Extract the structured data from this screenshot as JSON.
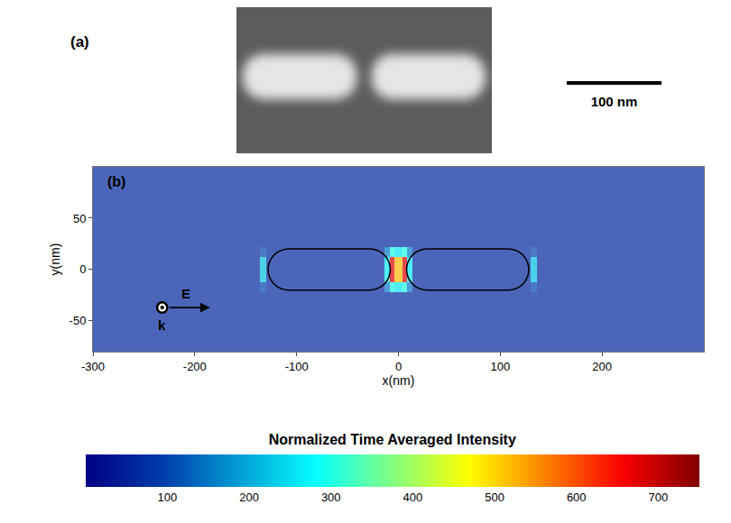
{
  "panel_a": {
    "label": "(a)",
    "scale_bar_label": "100 nm",
    "scale_bar_length_nm": 100
  },
  "chart_data": {
    "type": "heatmap",
    "panel_label": "(b)",
    "xlabel": "x(nm)",
    "ylabel": "y(nm)",
    "xlim": [
      -300,
      300
    ],
    "ylim": [
      -80,
      100
    ],
    "xticks": [
      -300,
      -200,
      -100,
      0,
      100,
      200
    ],
    "yticks": [
      -50,
      0,
      50
    ],
    "x_edges": [
      -300,
      -136,
      -130,
      -126,
      -14,
      -8,
      -4,
      4,
      8,
      14,
      126,
      130,
      136,
      300
    ],
    "y_edges": [
      -80,
      -22,
      -12,
      -6,
      6,
      12,
      22,
      100
    ],
    "z": [
      [
        60,
        60,
        60,
        60,
        60,
        60,
        60,
        60,
        60,
        60,
        60,
        60,
        60
      ],
      [
        60,
        100,
        60,
        60,
        150,
        300,
        260,
        300,
        150,
        60,
        60,
        100,
        60
      ],
      [
        60,
        220,
        60,
        60,
        260,
        680,
        520,
        680,
        260,
        60,
        60,
        220,
        60
      ],
      [
        60,
        220,
        60,
        60,
        260,
        680,
        520,
        680,
        260,
        60,
        60,
        220,
        60
      ],
      [
        60,
        220,
        60,
        60,
        260,
        680,
        520,
        680,
        260,
        60,
        60,
        220,
        60
      ],
      [
        60,
        100,
        60,
        60,
        150,
        300,
        260,
        300,
        150,
        60,
        60,
        100,
        60
      ],
      [
        60,
        60,
        60,
        60,
        60,
        60,
        60,
        60,
        60,
        60,
        60,
        60,
        60
      ]
    ],
    "colorbar": {
      "title": "Normalized Time Averaged Intensity",
      "range": [
        0,
        750
      ],
      "ticks": [
        100,
        200,
        300,
        400,
        500,
        600,
        700
      ]
    },
    "particles": [
      {
        "x0": -128,
        "x1": -8,
        "y0": -20,
        "y1": 20
      },
      {
        "x0": 8,
        "x1": 128,
        "y0": -20,
        "y1": 20
      }
    ],
    "wave": {
      "E_label": "E",
      "k_label": "k",
      "origin": [
        -232,
        -37
      ],
      "arrow_tip": [
        -185,
        -37
      ]
    }
  }
}
